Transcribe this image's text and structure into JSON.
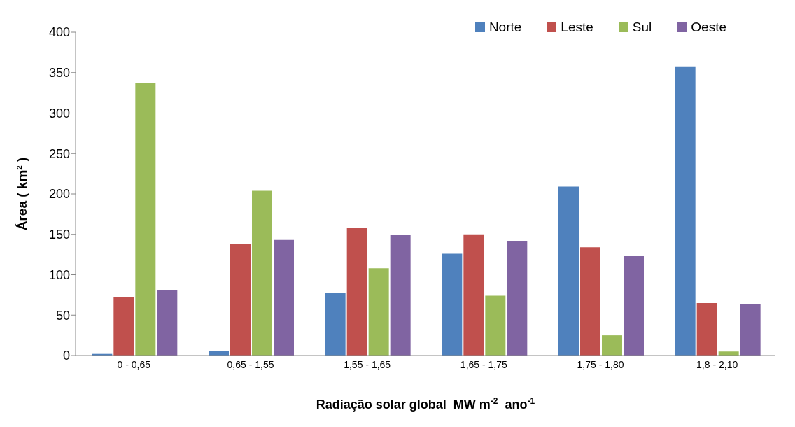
{
  "chart_data": {
    "type": "bar",
    "xlabel": "Radiação solar global  MW m$^{-2}$  ano$^{-1}$",
    "ylabel": "Área ( km² )",
    "categories": [
      "0 - 0,65",
      "0,65 - 1,55",
      "1,55 - 1,65",
      "1,65 - 1,75",
      "1,75 - 1,80",
      "1,8 - 2,10"
    ],
    "series": [
      {
        "name": "Norte",
        "color": "#4f81bd",
        "values": [
          2,
          6,
          77,
          126,
          209,
          357
        ]
      },
      {
        "name": "Leste",
        "color": "#c0504d",
        "values": [
          72,
          138,
          158,
          150,
          134,
          65
        ]
      },
      {
        "name": "Sul",
        "color": "#9bbb59",
        "values": [
          337,
          204,
          108,
          74,
          25,
          5
        ]
      },
      {
        "name": "Oeste",
        "color": "#8064a2",
        "values": [
          81,
          143,
          149,
          142,
          123,
          64
        ]
      }
    ],
    "ylim": [
      0,
      400
    ],
    "yticks": [
      0,
      50,
      100,
      150,
      200,
      250,
      300,
      350,
      400
    ],
    "legend": "top right",
    "grid": false
  }
}
